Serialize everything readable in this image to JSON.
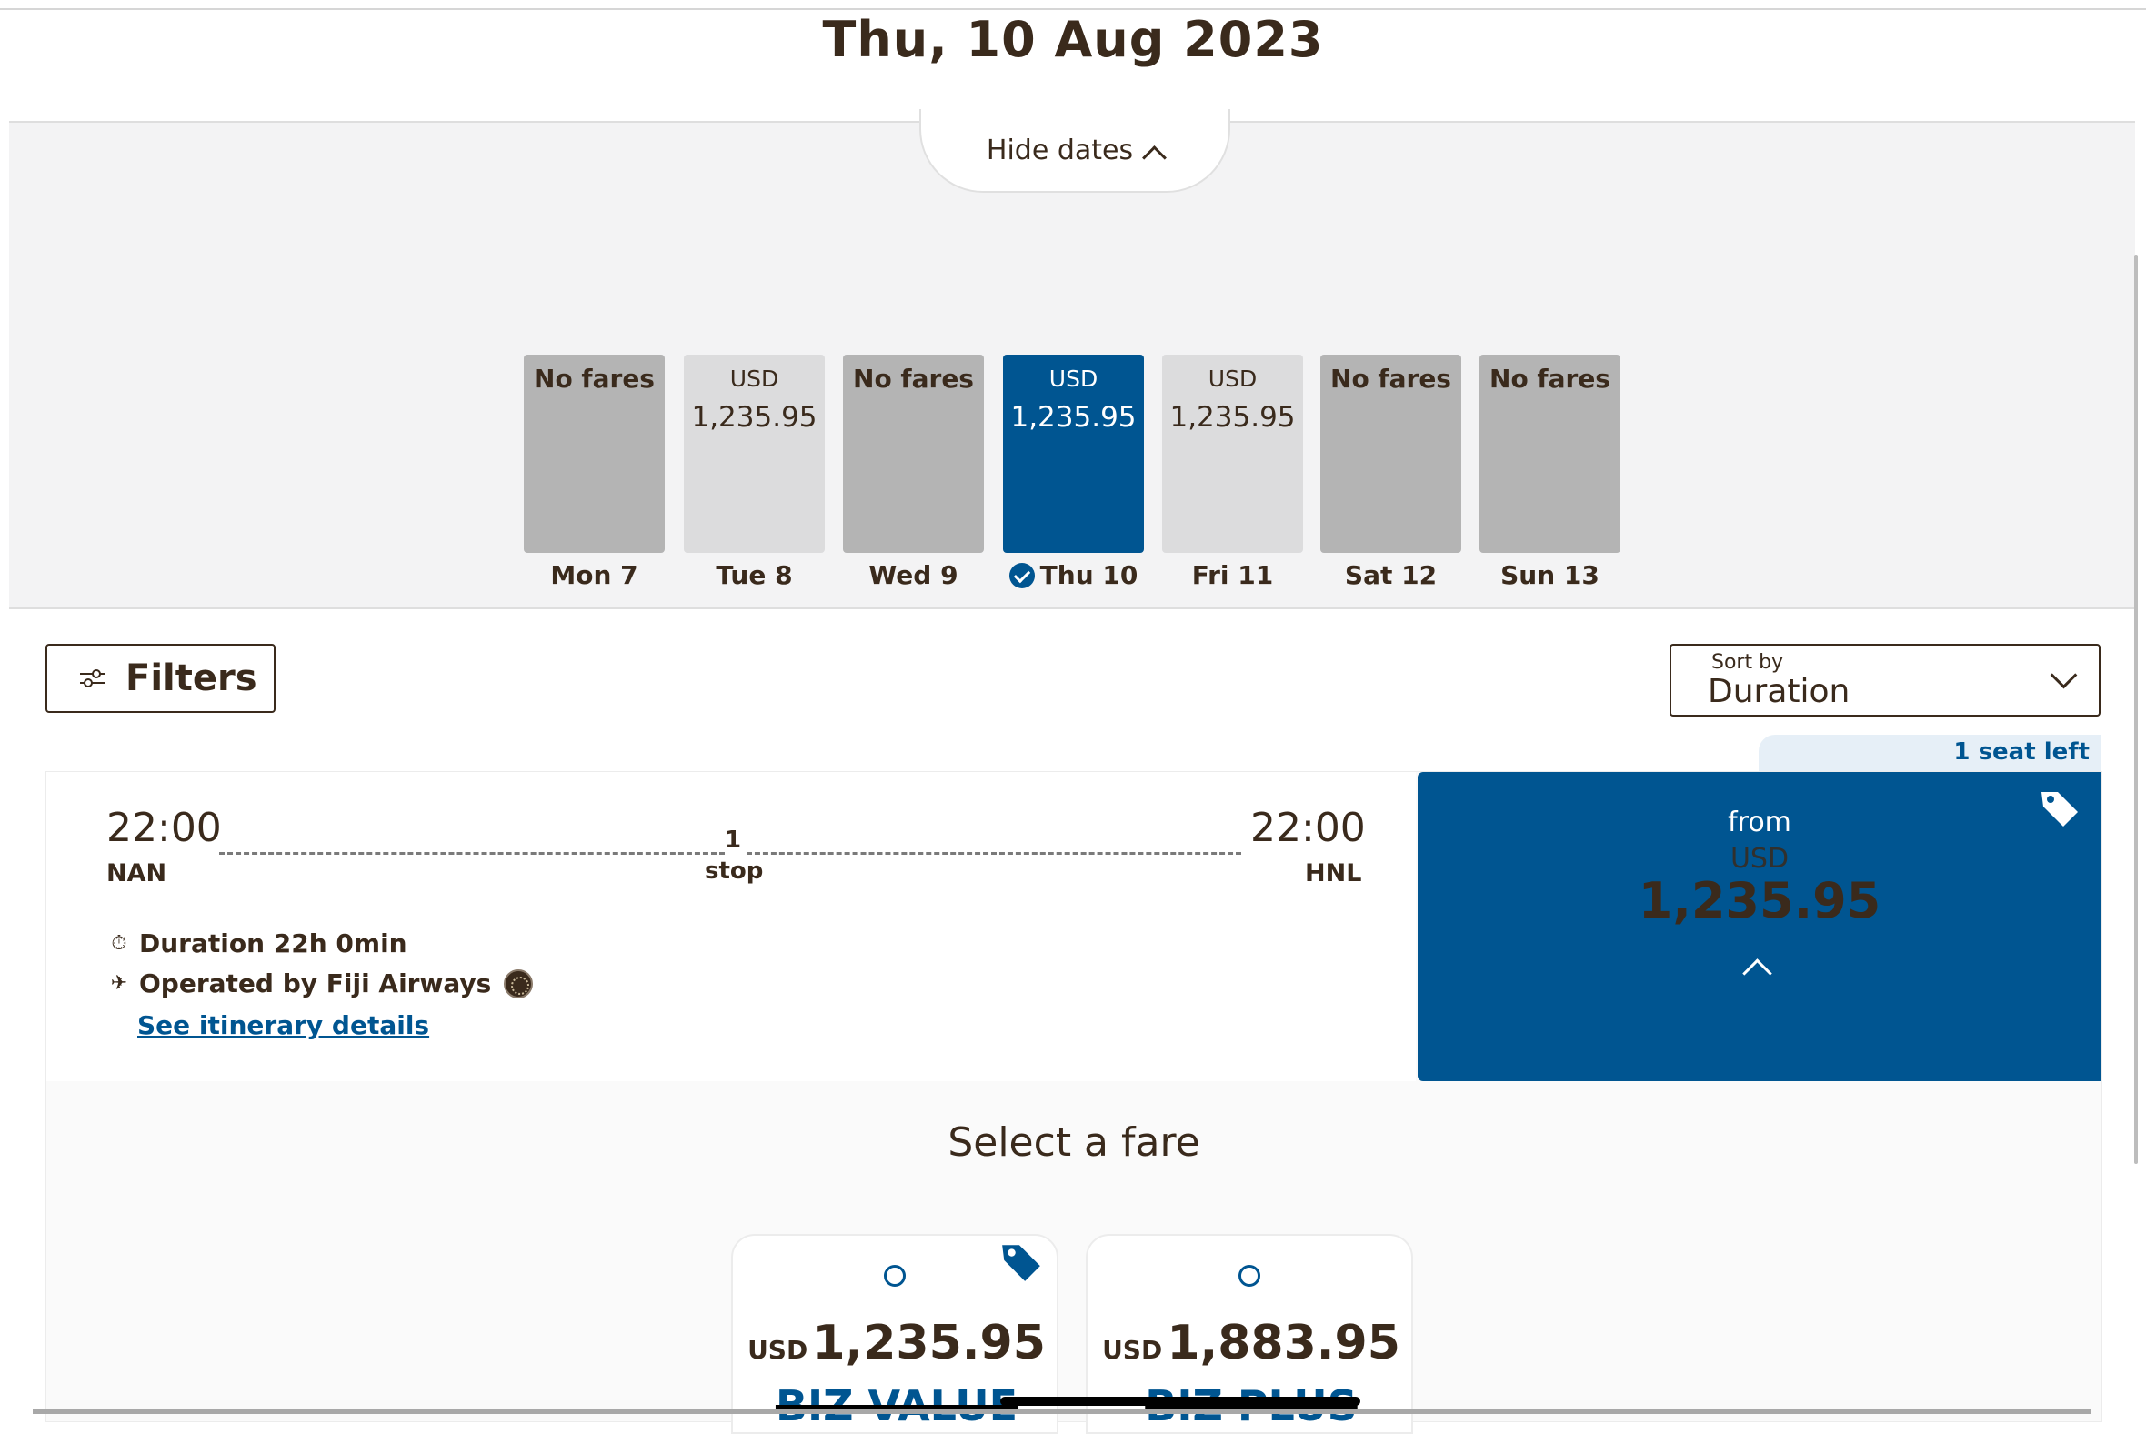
{
  "header": {
    "date": "Thu, 10 Aug 2023"
  },
  "dates_panel": {
    "toggle_label": "Hide dates",
    "days": [
      {
        "label": "Mon 7",
        "status": "No fares"
      },
      {
        "label": "Tue 8",
        "currency": "USD",
        "amount": "1,235.95"
      },
      {
        "label": "Wed 9",
        "status": "No fares"
      },
      {
        "label": "Thu 10",
        "currency": "USD",
        "amount": "1,235.95",
        "selected": true
      },
      {
        "label": "Fri 11",
        "currency": "USD",
        "amount": "1,235.95"
      },
      {
        "label": "Sat 12",
        "status": "No fares"
      },
      {
        "label": "Sun 13",
        "status": "No fares"
      }
    ]
  },
  "toolbar": {
    "filters_label": "Filters",
    "sort_caption": "Sort by",
    "sort_value": "Duration"
  },
  "flight": {
    "seat_badge": "1 seat left",
    "depart_time": "22:00",
    "depart_airport": "NAN",
    "arrive_time": "22:00",
    "arrive_airport": "HNL",
    "stops_count": "1",
    "stops_label": "stop",
    "duration": "Duration 22h 0min",
    "operator": "Operated by Fiji Airways",
    "itinerary_link": "See itinerary details",
    "price_from_label": "from",
    "price_currency": "USD",
    "price_amount": "1,235.95"
  },
  "fares": {
    "title": "Select a fare",
    "options": [
      {
        "currency": "USD",
        "amount": "1,235.95",
        "name": "BIZ VALUE"
      },
      {
        "currency": "USD",
        "amount": "1,883.95",
        "name": "BIZ PLUS"
      }
    ]
  },
  "colors": {
    "brand_blue": "#005591",
    "text_brown": "#3a2a1c",
    "no_fare_gray": "#b4b4b4",
    "fare_gray": "#dcdcdd"
  },
  "icons": [
    "chevron-up-icon",
    "check-circle-icon",
    "filter-sliders-icon",
    "chevron-down-icon",
    "price-tag-icon",
    "stopwatch-icon",
    "airplane-icon",
    "airline-logo-icon",
    "radio-icon"
  ]
}
